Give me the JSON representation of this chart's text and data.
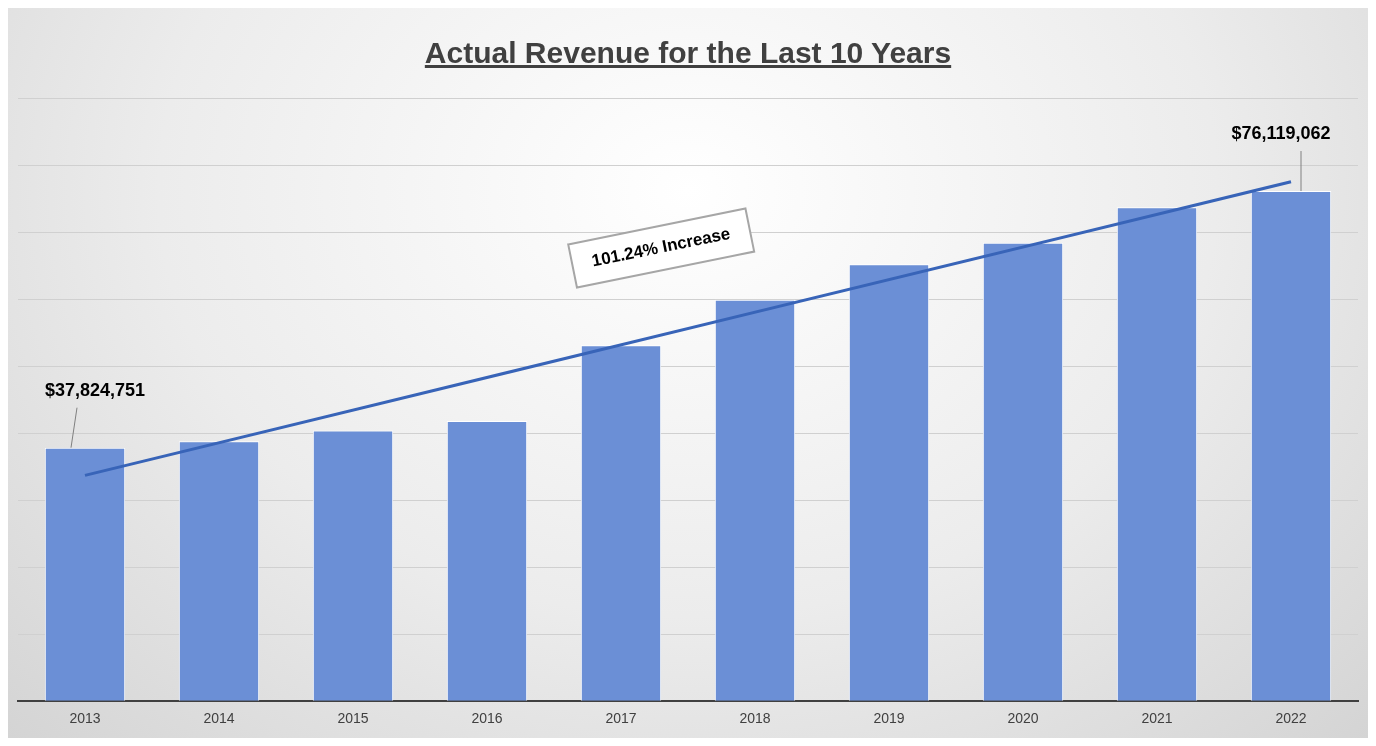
{
  "chart_data": {
    "type": "bar",
    "title": "Actual Revenue for the Last 10 Years",
    "categories": [
      "2013",
      "2014",
      "2015",
      "2016",
      "2017",
      "2018",
      "2019",
      "2020",
      "2021",
      "2022"
    ],
    "series": [
      {
        "color": "#6b8fd6",
        "values": [
          37824751,
          38800000,
          40400000,
          41800000,
          53100000,
          59900000,
          65200000,
          68400000,
          73700000,
          76119062
        ],
        "value_labels": [
          "$37,824,751",
          null,
          null,
          null,
          null,
          null,
          null,
          null,
          null,
          "$76,119,062"
        ]
      },
      {
        "type": "line",
        "color": "#3864b8",
        "values": [
          33700000,
          null,
          null,
          null,
          null,
          null,
          null,
          null,
          null,
          77500000
        ]
      }
    ],
    "ylim": [
      0,
      90000000
    ],
    "yticks": [
      0,
      10000000,
      20000000,
      30000000,
      40000000,
      50000000,
      60000000,
      70000000,
      80000000,
      90000000
    ],
    "tick_labels": "x",
    "grid": "y",
    "legend": false,
    "marker": "none",
    "annotations": [
      "101.24% Increase"
    ]
  }
}
